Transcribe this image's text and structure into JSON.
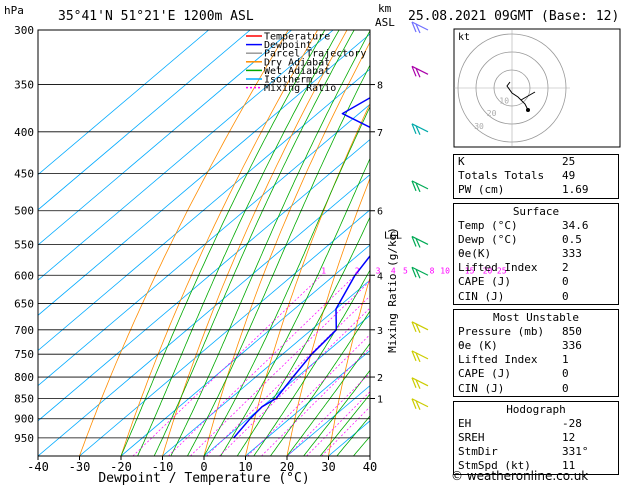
{
  "header": {
    "left_unit": "hPa",
    "location": "35°41'N 51°21'E 1200m ASL",
    "km_label": "km",
    "asl_label": "ASL",
    "date": "25.08.2021 09GMT (Base: 12)"
  },
  "legend": [
    {
      "label": "Temperature",
      "color": "#ff0000",
      "dash": false
    },
    {
      "label": "Dewpoint",
      "color": "#0000ff",
      "dash": false
    },
    {
      "label": "Parcel Trajectory",
      "color": "#999999",
      "dash": false
    },
    {
      "label": "Dry Adiabat",
      "color": "#ff8c00",
      "dash": false
    },
    {
      "label": "Wet Adiabat",
      "color": "#00aa00",
      "dash": false
    },
    {
      "label": "Isotherm",
      "color": "#00aaff",
      "dash": false
    },
    {
      "label": "Mixing Ratio",
      "color": "#ff00ff",
      "dash": true
    }
  ],
  "chart_data": {
    "type": "line",
    "title": "",
    "xlabel": "Dewpoint / Temperature (°C)",
    "ylabel": "hPa",
    "xlim": [
      -40,
      40
    ],
    "ylim": [
      300,
      1000
    ],
    "x_ticks": [
      -40,
      -30,
      -20,
      -10,
      0,
      10,
      20,
      30,
      40
    ],
    "pressure_ticks": [
      300,
      350,
      400,
      450,
      500,
      550,
      600,
      650,
      700,
      750,
      800,
      850,
      900,
      950
    ],
    "km_ticks": [
      {
        "p": 850,
        "label": "1"
      },
      {
        "p": 800,
        "label": "2"
      },
      {
        "p": 700,
        "label": "3"
      },
      {
        "p": 600,
        "label": "4"
      },
      {
        "p": 500,
        "label": "6"
      },
      {
        "p": 400,
        "label": "7"
      },
      {
        "p": 350,
        "label": "8"
      }
    ],
    "mixing_ratio_labels": [
      "1",
      "2",
      "3",
      "4",
      "5",
      "8",
      "10",
      "15",
      "20",
      "25"
    ],
    "mixing_ratio_axis_label": "Mixing Ratio (g/kg)",
    "lcl_label": "LCL",
    "series": [
      {
        "name": "Temperature",
        "color": "#ff0000",
        "points": [
          [
            950,
            37
          ],
          [
            900,
            34.6
          ],
          [
            850,
            30
          ],
          [
            800,
            25
          ],
          [
            750,
            21
          ],
          [
            700,
            17
          ],
          [
            650,
            12
          ],
          [
            600,
            7
          ],
          [
            550,
            2
          ],
          [
            500,
            -4
          ],
          [
            450,
            -11
          ],
          [
            400,
            -18
          ],
          [
            350,
            -26
          ],
          [
            300,
            -36
          ]
        ]
      },
      {
        "name": "Dewpoint",
        "color": "#0000ff",
        "points": [
          [
            950,
            2
          ],
          [
            900,
            0.5
          ],
          [
            870,
            0
          ],
          [
            850,
            1
          ],
          [
            800,
            -1
          ],
          [
            750,
            -3
          ],
          [
            700,
            -4
          ],
          [
            660,
            -10
          ],
          [
            600,
            -15
          ],
          [
            550,
            -18
          ],
          [
            500,
            -21
          ],
          [
            450,
            -35
          ],
          [
            400,
            -50
          ],
          [
            380,
            -64
          ],
          [
            350,
            -60
          ],
          [
            340,
            -55
          ],
          [
            300,
            -72
          ]
        ]
      },
      {
        "name": "Parcel Trajectory",
        "color": "#999999",
        "points": [
          [
            950,
            37
          ],
          [
            900,
            33
          ],
          [
            850,
            28.5
          ],
          [
            800,
            24
          ],
          [
            750,
            19.5
          ],
          [
            700,
            15
          ],
          [
            650,
            10
          ],
          [
            600,
            4.5
          ],
          [
            560,
            0.5
          ],
          [
            550,
            0
          ],
          [
            500,
            -6
          ],
          [
            450,
            -12.5
          ],
          [
            400,
            -19
          ],
          [
            350,
            -27
          ],
          [
            300,
            -36
          ]
        ]
      }
    ]
  },
  "hodograph": {
    "label": "kt",
    "ring_labels": [
      "10",
      "20",
      "30"
    ]
  },
  "indices": {
    "rows": [
      {
        "label": "K",
        "value": "25"
      },
      {
        "label": "Totals Totals",
        "value": "49"
      },
      {
        "label": "PW (cm)",
        "value": "1.69"
      }
    ]
  },
  "surface": {
    "title": "Surface",
    "rows": [
      {
        "label": "Temp (°C)",
        "value": "34.6"
      },
      {
        "label": "Dewp (°C)",
        "value": "0.5"
      },
      {
        "label": "θe(K)",
        "value": "333"
      },
      {
        "label": "Lifted Index",
        "value": "2"
      },
      {
        "label": "CAPE (J)",
        "value": "0"
      },
      {
        "label": "CIN (J)",
        "value": "0"
      }
    ]
  },
  "most_unstable": {
    "title": "Most Unstable",
    "rows": [
      {
        "label": "Pressure (mb)",
        "value": "850"
      },
      {
        "label": "θe (K)",
        "value": "336"
      },
      {
        "label": "Lifted Index",
        "value": "1"
      },
      {
        "label": "CAPE (J)",
        "value": "0"
      },
      {
        "label": "CIN (J)",
        "value": "0"
      }
    ]
  },
  "hodograph_table": {
    "title": "Hodograph",
    "rows": [
      {
        "label": "EH",
        "value": "-28"
      },
      {
        "label": "SREH",
        "value": "12"
      },
      {
        "label": "StmDir",
        "value": "331°"
      },
      {
        "label": "StmSpd (kt)",
        "value": "11"
      }
    ]
  },
  "footer": "© weatheronline.co.uk"
}
